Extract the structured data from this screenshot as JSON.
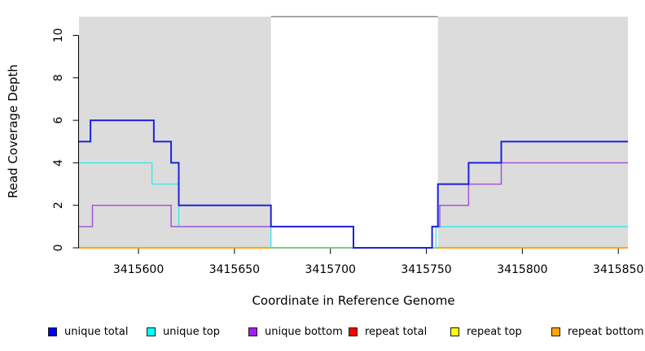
{
  "figure": {
    "y_axis_title": "Read Coverage Depth",
    "x_axis_title": "Coordinate in Reference Genome"
  },
  "chart_data": {
    "type": "line",
    "subtype": "step-coverage",
    "title": "",
    "xlabel": "Coordinate in Reference Genome",
    "ylabel": "Read Coverage Depth",
    "xlim": [
      3415569,
      3415855
    ],
    "ylim": [
      0,
      10.9
    ],
    "x_ticks": [
      3415600,
      3415650,
      3415700,
      3415750,
      3415800,
      3415850
    ],
    "y_ticks": [
      0,
      2,
      4,
      6,
      8,
      10
    ],
    "grid": false,
    "legend_position": "bottom",
    "background_regions": {
      "color": "#DCDCDC",
      "ranges": [
        [
          3415569,
          3415669
        ],
        [
          3415756,
          3415855
        ]
      ]
    },
    "gap_top_line": {
      "range": [
        3415669,
        3415756
      ],
      "y": "plot-top",
      "color": "#8A8A8A"
    },
    "series": [
      {
        "name": "repeat total",
        "color": "#FF0000",
        "line_color": "#FF0000",
        "width": 1.4,
        "steps": [
          [
            3415569,
            0
          ]
        ]
      },
      {
        "name": "repeat top",
        "color": "#FFFF00",
        "line_color": "#FFFF00",
        "width": 1.4,
        "steps": [
          [
            3415569,
            0
          ]
        ]
      },
      {
        "name": "repeat bottom",
        "color": "#FFA500",
        "line_color": "#FFA500",
        "width": 1.8,
        "steps": [
          [
            3415569,
            0
          ]
        ]
      },
      {
        "name": "unique top",
        "color": "#00FFFF",
        "line_color": "#33EAEA",
        "width": 1.4,
        "steps": [
          [
            3415569,
            4
          ],
          [
            3415607,
            3
          ],
          [
            3415621,
            1
          ],
          [
            3415669,
            0
          ],
          [
            3415755,
            1
          ]
        ]
      },
      {
        "name": "unique bottom",
        "color": "#A020F0",
        "line_color": "#A556D6",
        "width": 1.5,
        "steps": [
          [
            3415569,
            1
          ],
          [
            3415576,
            2
          ],
          [
            3415617,
            1
          ],
          [
            3415712,
            0
          ],
          [
            3415753,
            1
          ],
          [
            3415757,
            2
          ],
          [
            3415772,
            3
          ],
          [
            3415789,
            4
          ]
        ]
      },
      {
        "name": "unique total",
        "color": "#0000FF",
        "line_color": "#2020E0",
        "width": 2,
        "steps": [
          [
            3415569,
            5
          ],
          [
            3415575,
            6
          ],
          [
            3415608,
            5
          ],
          [
            3415617,
            4
          ],
          [
            3415621,
            2
          ],
          [
            3415669,
            1
          ],
          [
            3415712,
            0
          ],
          [
            3415753,
            1
          ],
          [
            3415756,
            3
          ],
          [
            3415772,
            4
          ],
          [
            3415789,
            5
          ]
        ]
      }
    ],
    "overlap_segments": [
      {
        "note": "cyan + yellow lines coincide at depth 0 in uncovered gap",
        "after_series": "unique top",
        "range": [
          3415669,
          3415753
        ],
        "y": 0,
        "color": "#7CC87C",
        "width": 1.5
      }
    ]
  },
  "legend": {
    "items": [
      {
        "label": "unique total",
        "color": "#0000FF"
      },
      {
        "label": "unique top",
        "color": "#00FFFF"
      },
      {
        "label": "unique bottom",
        "color": "#A020F0"
      },
      {
        "label": "repeat total",
        "color": "#FF0000"
      },
      {
        "label": "repeat top",
        "color": "#FFFF00"
      },
      {
        "label": "repeat bottom",
        "color": "#FFA500"
      }
    ]
  }
}
